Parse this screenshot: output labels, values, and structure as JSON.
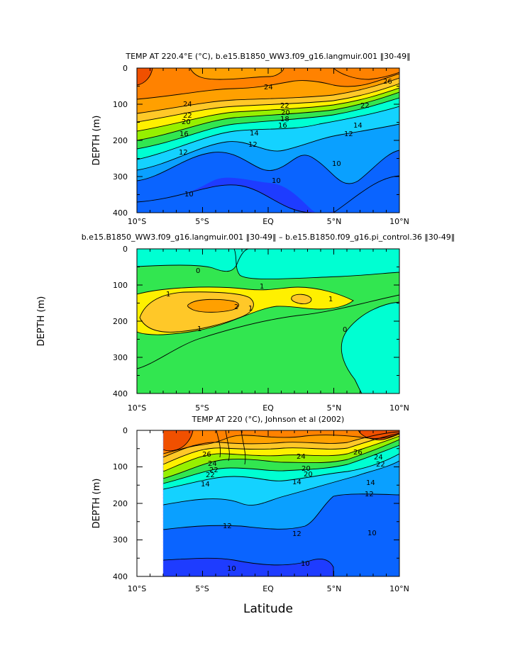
{
  "chart_data": [
    {
      "type": "contour",
      "title": "TEMP AT 220.4°E (°C), b.e15.B1850_WW3.f09_g16.langmuir.001 ‖30-49‖",
      "ylabel": "DEPTH (m)",
      "xlabel": "",
      "x_ticks": [
        "10°S",
        "5°S",
        "EQ",
        "5°N",
        "10°N"
      ],
      "y_ticks": [
        "0",
        "100",
        "200",
        "300",
        "400"
      ],
      "xlim": [
        -10,
        10
      ],
      "ylim": [
        400,
        0
      ],
      "contour_labels": [
        "26",
        "24",
        "24",
        "22",
        "22",
        "22",
        "20",
        "20",
        "18",
        "16",
        "16",
        "14",
        "14",
        "12",
        "12",
        "12",
        "10",
        "10",
        "10"
      ],
      "colors": [
        "#1e3cff",
        "#0a64ff",
        "#0aa0ff",
        "#14d2ff",
        "#00ffd2",
        "#32e650",
        "#96f000",
        "#fff000",
        "#ffc828",
        "#ffa000",
        "#ff8200",
        "#f05000"
      ]
    },
    {
      "type": "contour",
      "title": "b.e15.B1850_WW3.f09_g16.langmuir.001 ‖30-49‖ – b.e15.B1850.f09_g16.pi_control.36 ‖30-49‖",
      "ylabel": "DEPTH (m)",
      "xlabel": "",
      "x_ticks": [
        "10°S",
        "5°S",
        "EQ",
        "5°N",
        "10°N"
      ],
      "y_ticks": [
        "0",
        "100",
        "200",
        "300",
        "400"
      ],
      "xlim": [
        -10,
        10
      ],
      "ylim": [
        400,
        0
      ],
      "contour_labels": [
        "0",
        "1",
        "1",
        "1",
        "1",
        "2",
        "0"
      ],
      "colors": [
        "#00ffd2",
        "#32e650",
        "#fff000",
        "#ffc828",
        "#ffa000"
      ]
    },
    {
      "type": "contour",
      "title": "TEMP AT 220 (°C), Johnson et al (2002)",
      "ylabel": "DEPTH (m)",
      "xlabel": "Latitude",
      "x_ticks": [
        "10°S",
        "5°S",
        "EQ",
        "5°N",
        "10°N"
      ],
      "y_ticks": [
        "0",
        "100",
        "200",
        "300",
        "400"
      ],
      "xlim": [
        -10,
        10
      ],
      "ylim": [
        400,
        0
      ],
      "contour_labels": [
        "26",
        "24",
        "26",
        "24",
        "22",
        "20",
        "22",
        "20",
        "14",
        "14",
        "14",
        "24",
        "22",
        "12",
        "12",
        "12",
        "10",
        "10",
        "10"
      ],
      "colors": [
        "#1e3cff",
        "#0a64ff",
        "#0aa0ff",
        "#14d2ff",
        "#00ffd2",
        "#32e650",
        "#96f000",
        "#fff000",
        "#ffc828",
        "#ffa000",
        "#ff8200",
        "#f05000"
      ]
    }
  ]
}
